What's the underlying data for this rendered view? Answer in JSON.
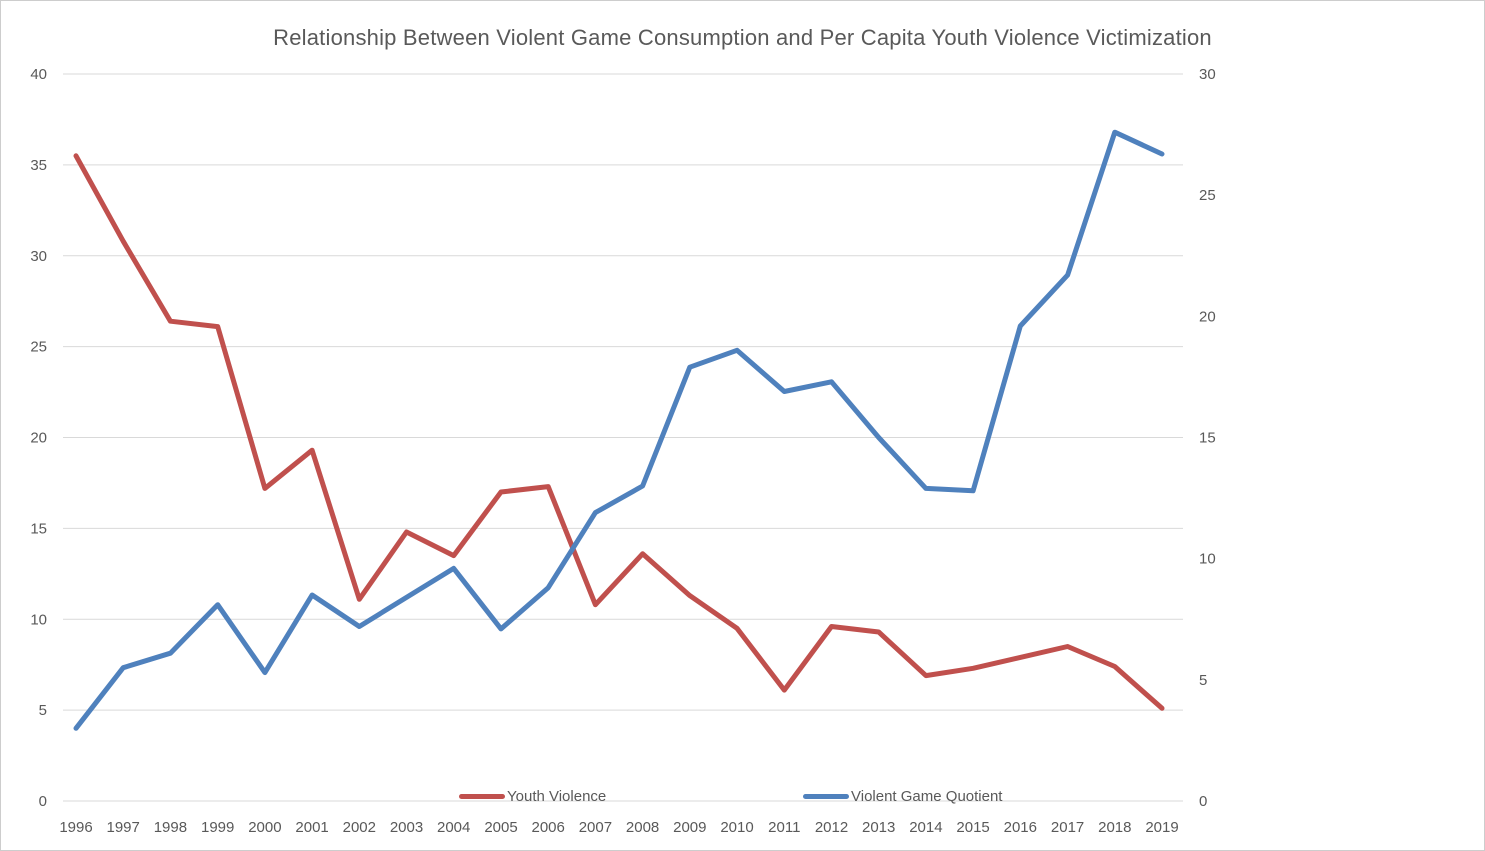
{
  "chart_data": {
    "type": "line",
    "title": "Relationship Between Violent Game Consumption and Per Capita Youth Violence Victimization",
    "x_labels": [
      "1996",
      "1997",
      "1998",
      "1999",
      "2000",
      "2001",
      "2002",
      "2003",
      "2004",
      "2005",
      "2006",
      "2007",
      "2008",
      "2009",
      "2010",
      "2011",
      "2012",
      "2013",
      "2014",
      "2015",
      "2016",
      "2017",
      "2018",
      "2019"
    ],
    "series": [
      {
        "name": "Youth Violence",
        "axis": "left",
        "color": "#C0504D",
        "values": [
          35.5,
          30.8,
          26.4,
          26.1,
          17.2,
          19.3,
          11.1,
          14.8,
          13.5,
          17.0,
          17.3,
          10.8,
          13.6,
          11.3,
          9.5,
          6.1,
          9.6,
          9.3,
          6.9,
          7.3,
          7.9,
          8.5,
          7.4,
          5.1
        ]
      },
      {
        "name": "Violent Game Quotient",
        "axis": "right",
        "color": "#4F81BD",
        "values": [
          3.0,
          5.5,
          6.1,
          8.1,
          5.3,
          8.5,
          7.2,
          8.4,
          9.6,
          7.1,
          8.8,
          11.9,
          13.0,
          17.9,
          18.6,
          16.9,
          17.3,
          15.0,
          12.9,
          12.8,
          19.6,
          21.7,
          27.6,
          26.7
        ]
      }
    ],
    "left_axis": {
      "min": 0,
      "max": 40,
      "tick_step": 5,
      "ticks": [
        0,
        5,
        10,
        15,
        20,
        25,
        30,
        35,
        40
      ]
    },
    "right_axis": {
      "min": 0,
      "max": 30,
      "tick_step": 5,
      "ticks": [
        0,
        5,
        10,
        15,
        20,
        25,
        30
      ]
    },
    "grid": true,
    "legend_position": "bottom-inside",
    "text_color": "#595959",
    "gridline_color": "#D9D9D9"
  }
}
